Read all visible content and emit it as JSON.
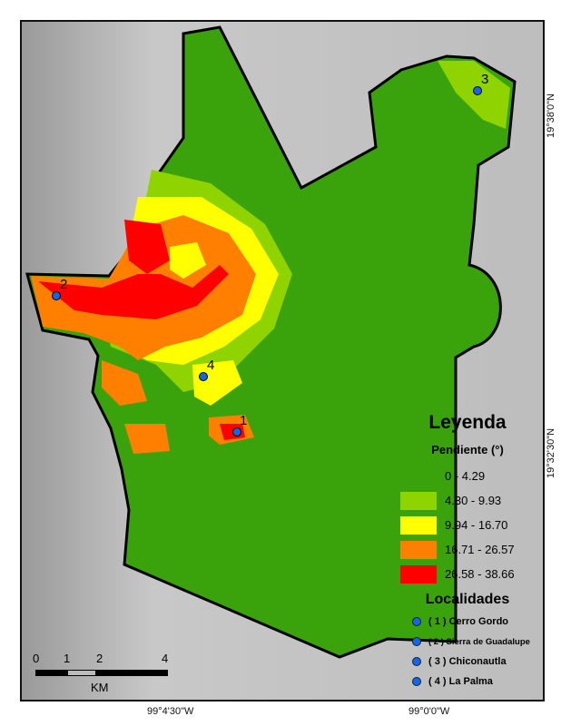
{
  "legend": {
    "title": "Leyenda",
    "slope_title": "Pendiente (°)",
    "classes": [
      {
        "label": "0 - 4.29",
        "color": "#3aa30c"
      },
      {
        "label": "4.30 - 9.93",
        "color": "#8fd400"
      },
      {
        "label": "9.94 - 16.70",
        "color": "#ffff00"
      },
      {
        "label": "16.71 - 26.57",
        "color": "#ff8000"
      },
      {
        "label": "26.58 - 38.66",
        "color": "#ff0000"
      }
    ],
    "localities_title": "Localidades",
    "localities": [
      {
        "label": "( 1 ) Cerro Gordo"
      },
      {
        "label": "( 2 ) Sierra de Guadalupe"
      },
      {
        "label": "( 3 ) Chiconautla"
      },
      {
        "label": "( 4 ) La Palma"
      }
    ]
  },
  "markers": [
    "1",
    "2",
    "3",
    "4"
  ],
  "marker_color": "#1565e8",
  "scale": {
    "ticks": [
      "0",
      "1",
      "2",
      "4"
    ],
    "unit": "KM"
  },
  "coords": {
    "lat_top": "19°38'0\"N",
    "lat_bottom": "19°32'30\"N",
    "lon_left": "99°4'30\"W",
    "lon_right": "99°0'0\"W"
  }
}
